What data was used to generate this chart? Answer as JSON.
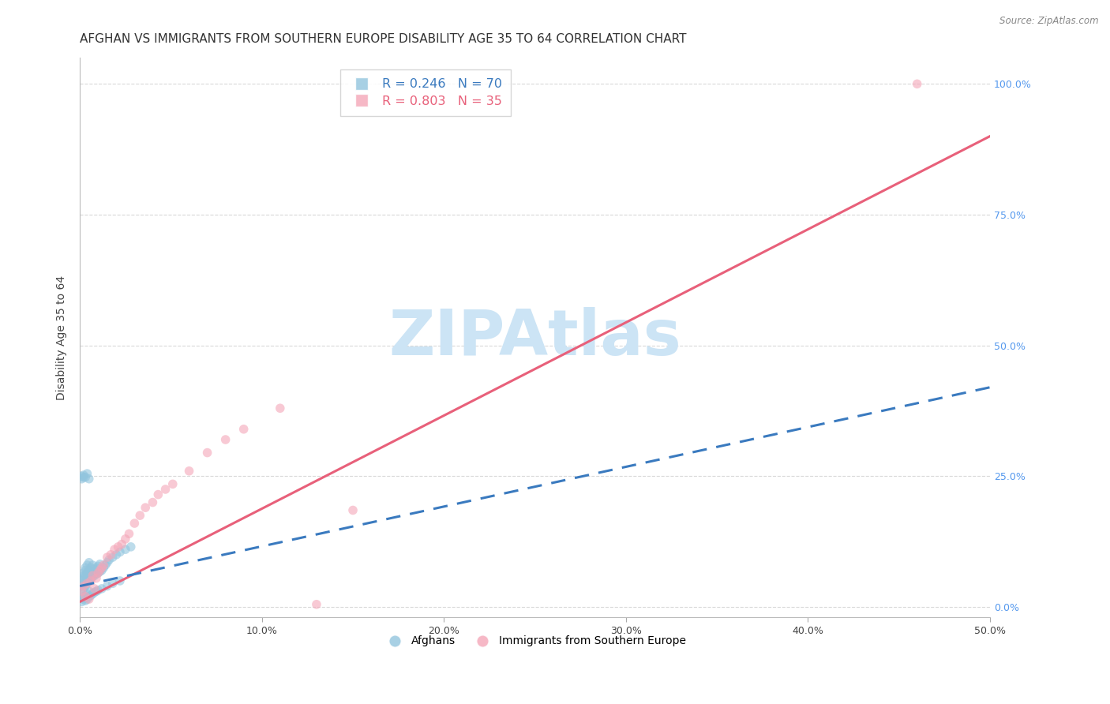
{
  "title": "AFGHAN VS IMMIGRANTS FROM SOUTHERN EUROPE DISABILITY AGE 35 TO 64 CORRELATION CHART",
  "source": "Source: ZipAtlas.com",
  "ylabel": "Disability Age 35 to 64",
  "xlim": [
    0.0,
    0.5
  ],
  "ylim": [
    -0.02,
    1.05
  ],
  "xtick_vals": [
    0.0,
    0.1,
    0.2,
    0.3,
    0.4,
    0.5
  ],
  "xtick_labels": [
    "0.0%",
    "10.0%",
    "20.0%",
    "30.0%",
    "40.0%",
    "50.0%"
  ],
  "ytick_vals": [
    0.0,
    0.25,
    0.5,
    0.75,
    1.0
  ],
  "ytick_labels_right": [
    "0.0%",
    "25.0%",
    "50.0%",
    "75.0%",
    "100.0%"
  ],
  "blue_color": "#92c5de",
  "pink_color": "#f4a6b8",
  "blue_line_color": "#3a7abf",
  "pink_line_color": "#e8607a",
  "grid_color": "#d0d0d0",
  "watermark": "ZIPAtlas",
  "watermark_color": "#cce4f5",
  "legend_label_blue": "Afghans",
  "legend_label_pink": "Immigrants from Southern Europe",
  "blue_x": [
    0.001,
    0.001,
    0.001,
    0.002,
    0.002,
    0.002,
    0.002,
    0.002,
    0.003,
    0.003,
    0.003,
    0.003,
    0.003,
    0.004,
    0.004,
    0.004,
    0.004,
    0.005,
    0.005,
    0.005,
    0.005,
    0.006,
    0.006,
    0.006,
    0.007,
    0.007,
    0.007,
    0.008,
    0.008,
    0.009,
    0.009,
    0.01,
    0.01,
    0.011,
    0.011,
    0.012,
    0.013,
    0.014,
    0.015,
    0.016,
    0.018,
    0.02,
    0.022,
    0.025,
    0.028,
    0.001,
    0.002,
    0.002,
    0.003,
    0.003,
    0.004,
    0.004,
    0.005,
    0.005,
    0.006,
    0.007,
    0.008,
    0.009,
    0.01,
    0.012,
    0.015,
    0.018,
    0.022,
    0.001,
    0.002,
    0.003,
    0.004,
    0.005,
    0.001,
    0.002
  ],
  "blue_y": [
    0.03,
    0.04,
    0.05,
    0.035,
    0.045,
    0.055,
    0.06,
    0.065,
    0.04,
    0.05,
    0.06,
    0.07,
    0.075,
    0.045,
    0.055,
    0.065,
    0.08,
    0.05,
    0.06,
    0.07,
    0.085,
    0.055,
    0.065,
    0.075,
    0.058,
    0.068,
    0.08,
    0.06,
    0.072,
    0.063,
    0.075,
    0.065,
    0.078,
    0.068,
    0.082,
    0.07,
    0.075,
    0.08,
    0.085,
    0.09,
    0.095,
    0.1,
    0.105,
    0.11,
    0.115,
    0.01,
    0.015,
    0.02,
    0.012,
    0.018,
    0.015,
    0.025,
    0.02,
    0.03,
    0.022,
    0.025,
    0.028,
    0.03,
    0.032,
    0.035,
    0.04,
    0.045,
    0.05,
    0.25,
    0.252,
    0.248,
    0.255,
    0.245,
    0.245,
    0.248
  ],
  "pink_x": [
    0.001,
    0.002,
    0.003,
    0.004,
    0.005,
    0.006,
    0.007,
    0.008,
    0.009,
    0.01,
    0.011,
    0.012,
    0.013,
    0.015,
    0.017,
    0.019,
    0.021,
    0.023,
    0.025,
    0.027,
    0.03,
    0.033,
    0.036,
    0.04,
    0.043,
    0.047,
    0.051,
    0.06,
    0.07,
    0.08,
    0.09,
    0.11,
    0.13,
    0.15,
    0.46
  ],
  "pink_y": [
    0.03,
    0.04,
    0.02,
    0.045,
    0.015,
    0.05,
    0.06,
    0.035,
    0.055,
    0.065,
    0.07,
    0.075,
    0.08,
    0.095,
    0.1,
    0.11,
    0.115,
    0.12,
    0.13,
    0.14,
    0.16,
    0.175,
    0.19,
    0.2,
    0.215,
    0.225,
    0.235,
    0.26,
    0.295,
    0.32,
    0.34,
    0.38,
    0.005,
    0.185,
    1.0
  ],
  "blue_trend_x": [
    0.0,
    0.5
  ],
  "blue_trend_y": [
    0.04,
    0.42
  ],
  "pink_trend_x": [
    0.0,
    0.5
  ],
  "pink_trend_y": [
    0.01,
    0.9
  ],
  "background_color": "#ffffff",
  "title_fontsize": 11,
  "axis_fontsize": 10,
  "tick_fontsize": 9,
  "dot_size": 70,
  "dot_alpha": 0.6
}
